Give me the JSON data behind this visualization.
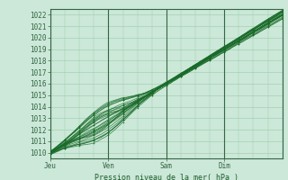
{
  "title": "",
  "xlabel": "Pression niveau de la mer( hPa )",
  "bg_color": "#cce8d8",
  "grid_color": "#99ccaa",
  "line_color": "#1a6b2a",
  "day_line_color": "#336644",
  "ylim": [
    1009.5,
    1022.5
  ],
  "xlim": [
    0,
    96
  ],
  "xtick_positions": [
    0,
    24,
    48,
    72
  ],
  "xtick_labels": [
    "Jeu",
    "Ven",
    "Sam",
    "Dim"
  ],
  "ytick_positions": [
    1010,
    1011,
    1012,
    1013,
    1014,
    1015,
    1016,
    1017,
    1018,
    1019,
    1020,
    1021,
    1022
  ],
  "num_hours": 193,
  "num_members": 20
}
